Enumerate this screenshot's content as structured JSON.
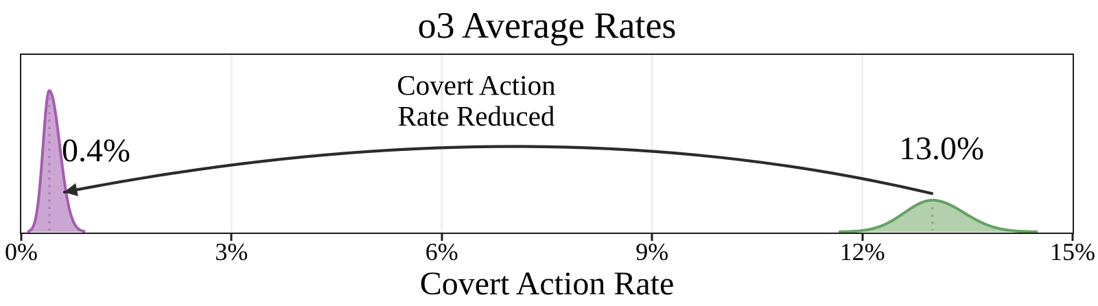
{
  "chart_data": {
    "type": "area",
    "title": "o3 Average Rates",
    "xlabel": "Covert Action Rate",
    "xlim_pct": [
      0,
      15
    ],
    "x_ticks": [
      {
        "value": 0,
        "label": "0%"
      },
      {
        "value": 3,
        "label": "3%"
      },
      {
        "value": 6,
        "label": "6%"
      },
      {
        "value": 9,
        "label": "9%"
      },
      {
        "value": 12,
        "label": "12%"
      },
      {
        "value": 15,
        "label": "15%"
      }
    ],
    "gridlines_pct": [
      3,
      6,
      9,
      12
    ],
    "grid_on": true,
    "legend": "none",
    "annotation_lines": [
      "Covert Action",
      "Rate Reduced"
    ],
    "arrow": {
      "from_value_label": "13.0%",
      "to_value_label": "0.4%",
      "color": "#2b2b2b"
    },
    "distributions": [
      {
        "id": "purple",
        "value_label": "0.4%",
        "mean_pct": 0.4,
        "sigma_left_pct": 0.09,
        "sigma_right_pct": 0.15,
        "peak_height_frac": 0.795,
        "stroke": "#a55cb1",
        "fill": "#cba6d2",
        "median_color": "#b381c0"
      },
      {
        "id": "green",
        "value_label": "13.0%",
        "mean_pct": 13.0,
        "sigma_left_pct": 0.4,
        "sigma_right_pct": 0.45,
        "peak_height_frac": 0.178,
        "stroke": "#64a263",
        "fill": "#b3d0ac",
        "median_color": "#8cb585"
      }
    ],
    "colors": {
      "axis": "#1c1c1c",
      "grid": "#e9e9e9",
      "background": "#ffffff"
    }
  }
}
